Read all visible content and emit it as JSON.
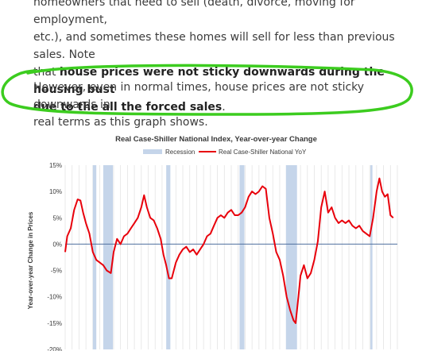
{
  "article": {
    "p1_line1": "homeowners that need to sell (death, divorce, moving for employment,",
    "p1_line2": "etc.), and sometimes these homes will sell for less than previous sales. Note",
    "p1_line3_pre": "that ",
    "p1_bold1": "house prices were not sticky downwards during the housing bust",
    "p1_bold2": "due to the all the forced sales",
    "p1_end": ".",
    "p2_line1": "However, even in normal times, house prices are not sticky downwards in",
    "p2_line2": "real terms as this graph shows."
  },
  "colors": {
    "highlight": "#3ccc1f",
    "series": "#e8000b",
    "recession": "#c5d5ea",
    "zero_line": "#4f6f9f"
  },
  "chart_data": {
    "type": "line",
    "title": "Real Case-Shiller National Index, Year-over-year Change",
    "ylabel": "Year-over-year Change in Prices",
    "ylim": [
      -20,
      15
    ],
    "yticks": [
      15,
      10,
      5,
      0,
      -5,
      -10,
      -15,
      -20
    ],
    "ytick_labels": [
      "15%",
      "10%",
      "5%",
      "0%",
      "-5%",
      "-10%",
      "-15%",
      "-20%"
    ],
    "xlim": [
      1976,
      2024
    ],
    "legend": {
      "position": "top",
      "recession_label": "Recession",
      "series_label": "Real Case-Shiller National YoY"
    },
    "recessions": [
      [
        1980.0,
        1980.5
      ],
      [
        1981.5,
        1982.9
      ],
      [
        1990.6,
        1991.2
      ],
      [
        2001.2,
        2001.9
      ],
      [
        2007.9,
        2009.5
      ],
      [
        2020.1,
        2020.4
      ]
    ],
    "series": [
      {
        "name": "Real Case-Shiller National YoY",
        "x": [
          1976.0,
          1976.3,
          1976.8,
          1977.3,
          1977.8,
          1978.2,
          1978.6,
          1979.0,
          1979.5,
          1980.0,
          1980.5,
          1981.0,
          1981.5,
          1982.0,
          1982.6,
          1983.0,
          1983.5,
          1984.0,
          1984.5,
          1985.0,
          1985.5,
          1986.0,
          1986.5,
          1987.0,
          1987.4,
          1987.8,
          1988.3,
          1988.8,
          1989.3,
          1989.8,
          1990.2,
          1990.6,
          1991.0,
          1991.4,
          1992.0,
          1992.5,
          1993.0,
          1993.5,
          1994.0,
          1994.5,
          1995.0,
          1995.5,
          1996.0,
          1996.5,
          1997.0,
          1997.5,
          1998.0,
          1998.5,
          1999.0,
          1999.5,
          2000.0,
          2000.5,
          2001.0,
          2001.5,
          2002.0,
          2002.5,
          2003.0,
          2003.5,
          2004.0,
          2004.5,
          2005.0,
          2005.5,
          2006.0,
          2006.5,
          2007.0,
          2007.5,
          2008.0,
          2008.5,
          2009.0,
          2009.3,
          2009.7,
          2010.0,
          2010.5,
          2011.0,
          2011.5,
          2012.0,
          2012.5,
          2013.0,
          2013.5,
          2014.0,
          2014.5,
          2015.0,
          2015.5,
          2016.0,
          2016.5,
          2017.0,
          2017.5,
          2018.0,
          2018.5,
          2019.0,
          2019.5,
          2020.0,
          2020.5,
          2021.0,
          2021.4,
          2021.8,
          2022.2,
          2022.6,
          2023.0,
          2023.4
        ],
        "y": [
          -1.5,
          1.5,
          3.0,
          6.5,
          8.5,
          8.3,
          6.0,
          4.0,
          2.0,
          -1.5,
          -3.0,
          -3.5,
          -4.0,
          -5.0,
          -5.5,
          -1.5,
          1.0,
          0.0,
          1.5,
          2.0,
          3.0,
          4.0,
          5.0,
          7.0,
          9.3,
          7.0,
          5.0,
          4.5,
          3.0,
          1.0,
          -2.0,
          -4.0,
          -6.5,
          -6.5,
          -3.5,
          -2.0,
          -1.0,
          -0.5,
          -1.5,
          -1.0,
          -2.0,
          -1.0,
          0.0,
          1.5,
          2.0,
          3.5,
          5.0,
          5.5,
          5.0,
          6.0,
          6.5,
          5.5,
          5.5,
          6.0,
          7.0,
          9.0,
          10.0,
          9.5,
          10.0,
          11.0,
          10.5,
          5.0,
          2.0,
          -1.5,
          -3.0,
          -6.0,
          -10.0,
          -12.5,
          -14.5,
          -15.0,
          -10.0,
          -6.0,
          -4.0,
          -6.5,
          -5.5,
          -3.0,
          0.5,
          7.0,
          10.0,
          6.0,
          7.0,
          5.0,
          4.0,
          4.5,
          4.0,
          4.5,
          3.5,
          3.0,
          3.5,
          2.5,
          2.0,
          1.5,
          5.0,
          10.0,
          12.5,
          10.0,
          9.0,
          9.5,
          5.5,
          5.0
        ]
      }
    ]
  }
}
